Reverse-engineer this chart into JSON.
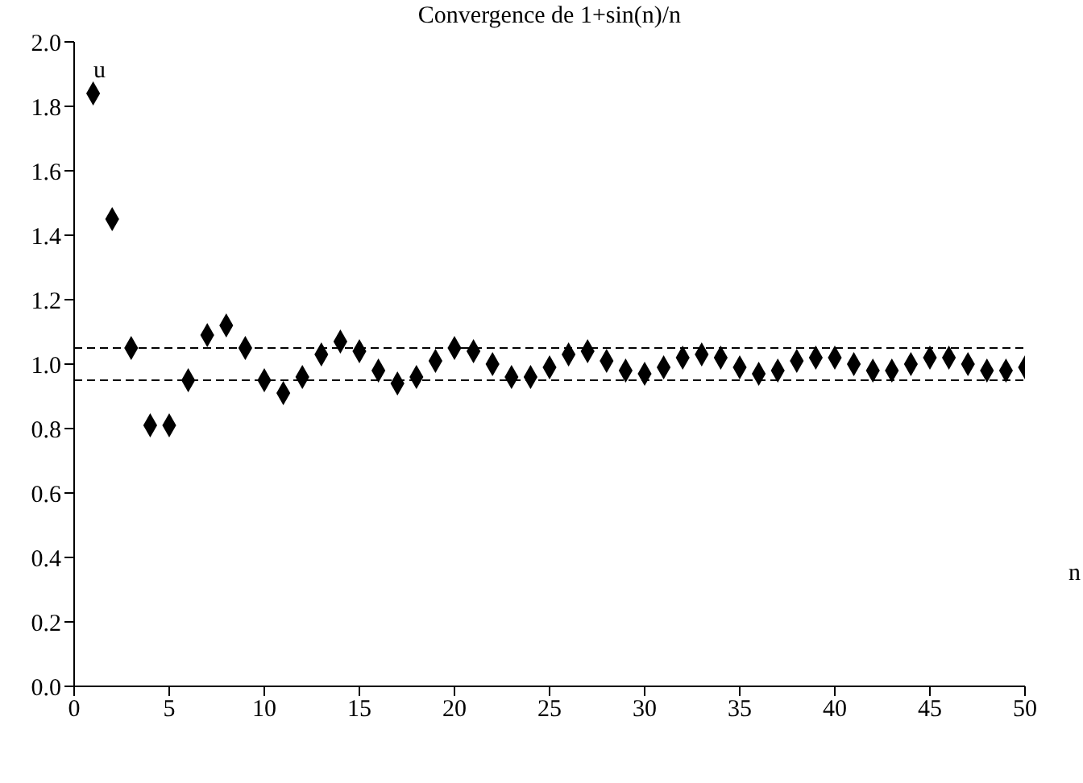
{
  "chart_data": {
    "type": "scatter",
    "title": "Convergence de 1+sin(n)/n",
    "xlabel": "n",
    "ylabel": "u",
    "x": [
      1,
      2,
      3,
      4,
      5,
      6,
      7,
      8,
      9,
      10,
      11,
      12,
      13,
      14,
      15,
      16,
      17,
      18,
      19,
      20,
      21,
      22,
      23,
      24,
      25,
      26,
      27,
      28,
      29,
      30,
      31,
      32,
      33,
      34,
      35,
      36,
      37,
      38,
      39,
      40,
      41,
      42,
      43,
      44,
      45,
      46,
      47,
      48,
      49,
      50
    ],
    "series": [
      {
        "color": "#000000",
        "values": [
          1.84,
          1.45,
          1.05,
          0.81,
          0.81,
          0.95,
          1.09,
          1.12,
          1.05,
          0.95,
          0.91,
          0.96,
          1.03,
          1.07,
          1.04,
          0.98,
          0.94,
          0.96,
          1.01,
          1.05,
          1.04,
          1.0,
          0.96,
          0.96,
          0.99,
          1.03,
          1.04,
          1.01,
          0.98,
          0.97,
          0.99,
          1.02,
          1.03,
          1.02,
          0.99,
          0.97,
          0.98,
          1.01,
          1.02,
          1.02,
          1.0,
          0.98,
          0.98,
          1.0,
          1.02,
          1.02,
          1.0,
          0.98,
          0.98,
          0.99
        ]
      }
    ],
    "xlim": [
      0,
      50
    ],
    "xticks": [
      0,
      5,
      10,
      15,
      20,
      25,
      30,
      35,
      40,
      45,
      50
    ],
    "ylim": [
      0,
      2
    ],
    "yticks": [
      {
        "value": 0,
        "label": "0.0"
      },
      {
        "value": 0.2,
        "label": "0.2"
      },
      {
        "value": 0.4,
        "label": "0.4"
      },
      {
        "value": 0.6,
        "label": "0.6"
      },
      {
        "value": 0.8,
        "label": "0.8"
      },
      {
        "value": 1,
        "label": "1.0"
      },
      {
        "value": 1.2,
        "label": "1.2"
      },
      {
        "value": 1.4,
        "label": "1.4"
      },
      {
        "value": 1.6,
        "label": "1.6"
      },
      {
        "value": 1.8,
        "label": "1.8"
      },
      {
        "value": 2,
        "label": "2.0"
      }
    ],
    "ref_lines": [
      {
        "axis": "y",
        "value": 1.05,
        "color": "#000000",
        "line_style": "dashed"
      },
      {
        "axis": "y",
        "value": 0.95,
        "color": "#000000",
        "line_style": "dashed"
      }
    ],
    "marker": "diamond",
    "grid": false,
    "legend": false
  }
}
